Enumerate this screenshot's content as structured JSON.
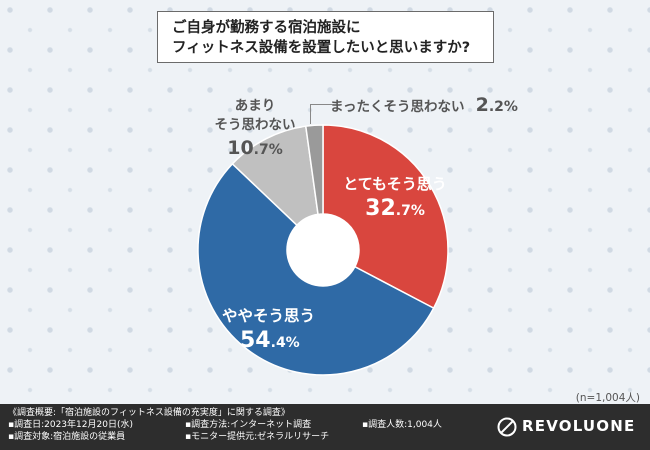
{
  "question": {
    "line1": "ご自身が勤務する宿泊施設に",
    "line2": "フィットネス設備を設置したいと思いますか?"
  },
  "chart_data": {
    "type": "pie",
    "donut": true,
    "slices": [
      {
        "name": "とてもそう思う",
        "value": 32.7,
        "int": "32",
        "dec": ".7%",
        "color": "#d9463e"
      },
      {
        "name": "ややそう思う",
        "value": 54.4,
        "int": "54",
        "dec": ".4%",
        "color": "#2f6aa6"
      },
      {
        "name": "あまりそう思わない",
        "name_line1": "あまり",
        "name_line2": "そう思わない",
        "value": 10.7,
        "int": "10",
        "dec": ".7%",
        "color": "#c0c0c0"
      },
      {
        "name": "まったくそう思わない",
        "value": 2.2,
        "int": "2",
        "dec": ".2%",
        "color": "#9a9a9a"
      }
    ],
    "sample_note": "(n=1,004人)"
  },
  "footer": {
    "summary": "《調査概要:「宿泊施設のフィットネス設備の充実度」に関する調査》",
    "date": "▪調査日:2023年12月20日(水)",
    "target": "▪調査対象:宿泊施設の従業員",
    "method": "▪調査方法:インターネット調査",
    "provider": "▪モニター提供元:ゼネラルリサーチ",
    "count": "▪調査人数:1,004人",
    "logo": "REVOLUONE"
  }
}
